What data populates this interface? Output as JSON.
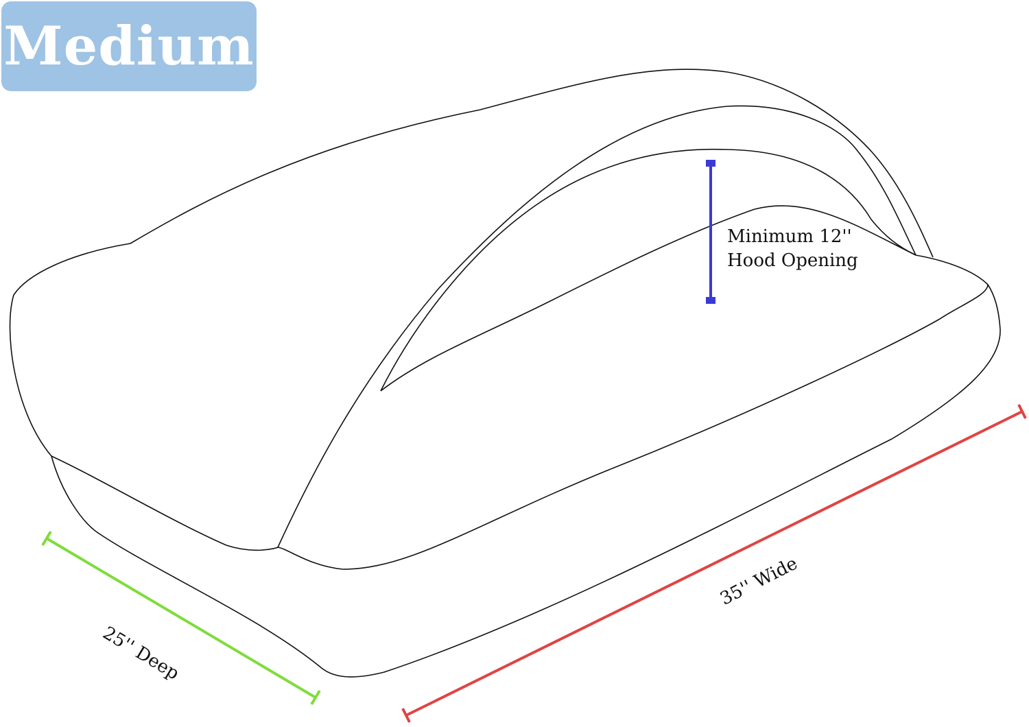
{
  "size_badge": {
    "label": "Medium",
    "color": "#9ec3e4"
  },
  "dimensions": {
    "hood": {
      "line1": "Minimum 12''",
      "line2": "Hood Opening",
      "color": "#3a3ad8"
    },
    "depth": {
      "label": "25'' Deep",
      "color": "#7fdc3c"
    },
    "width": {
      "label": "35'' Wide",
      "color": "#e04444"
    }
  }
}
